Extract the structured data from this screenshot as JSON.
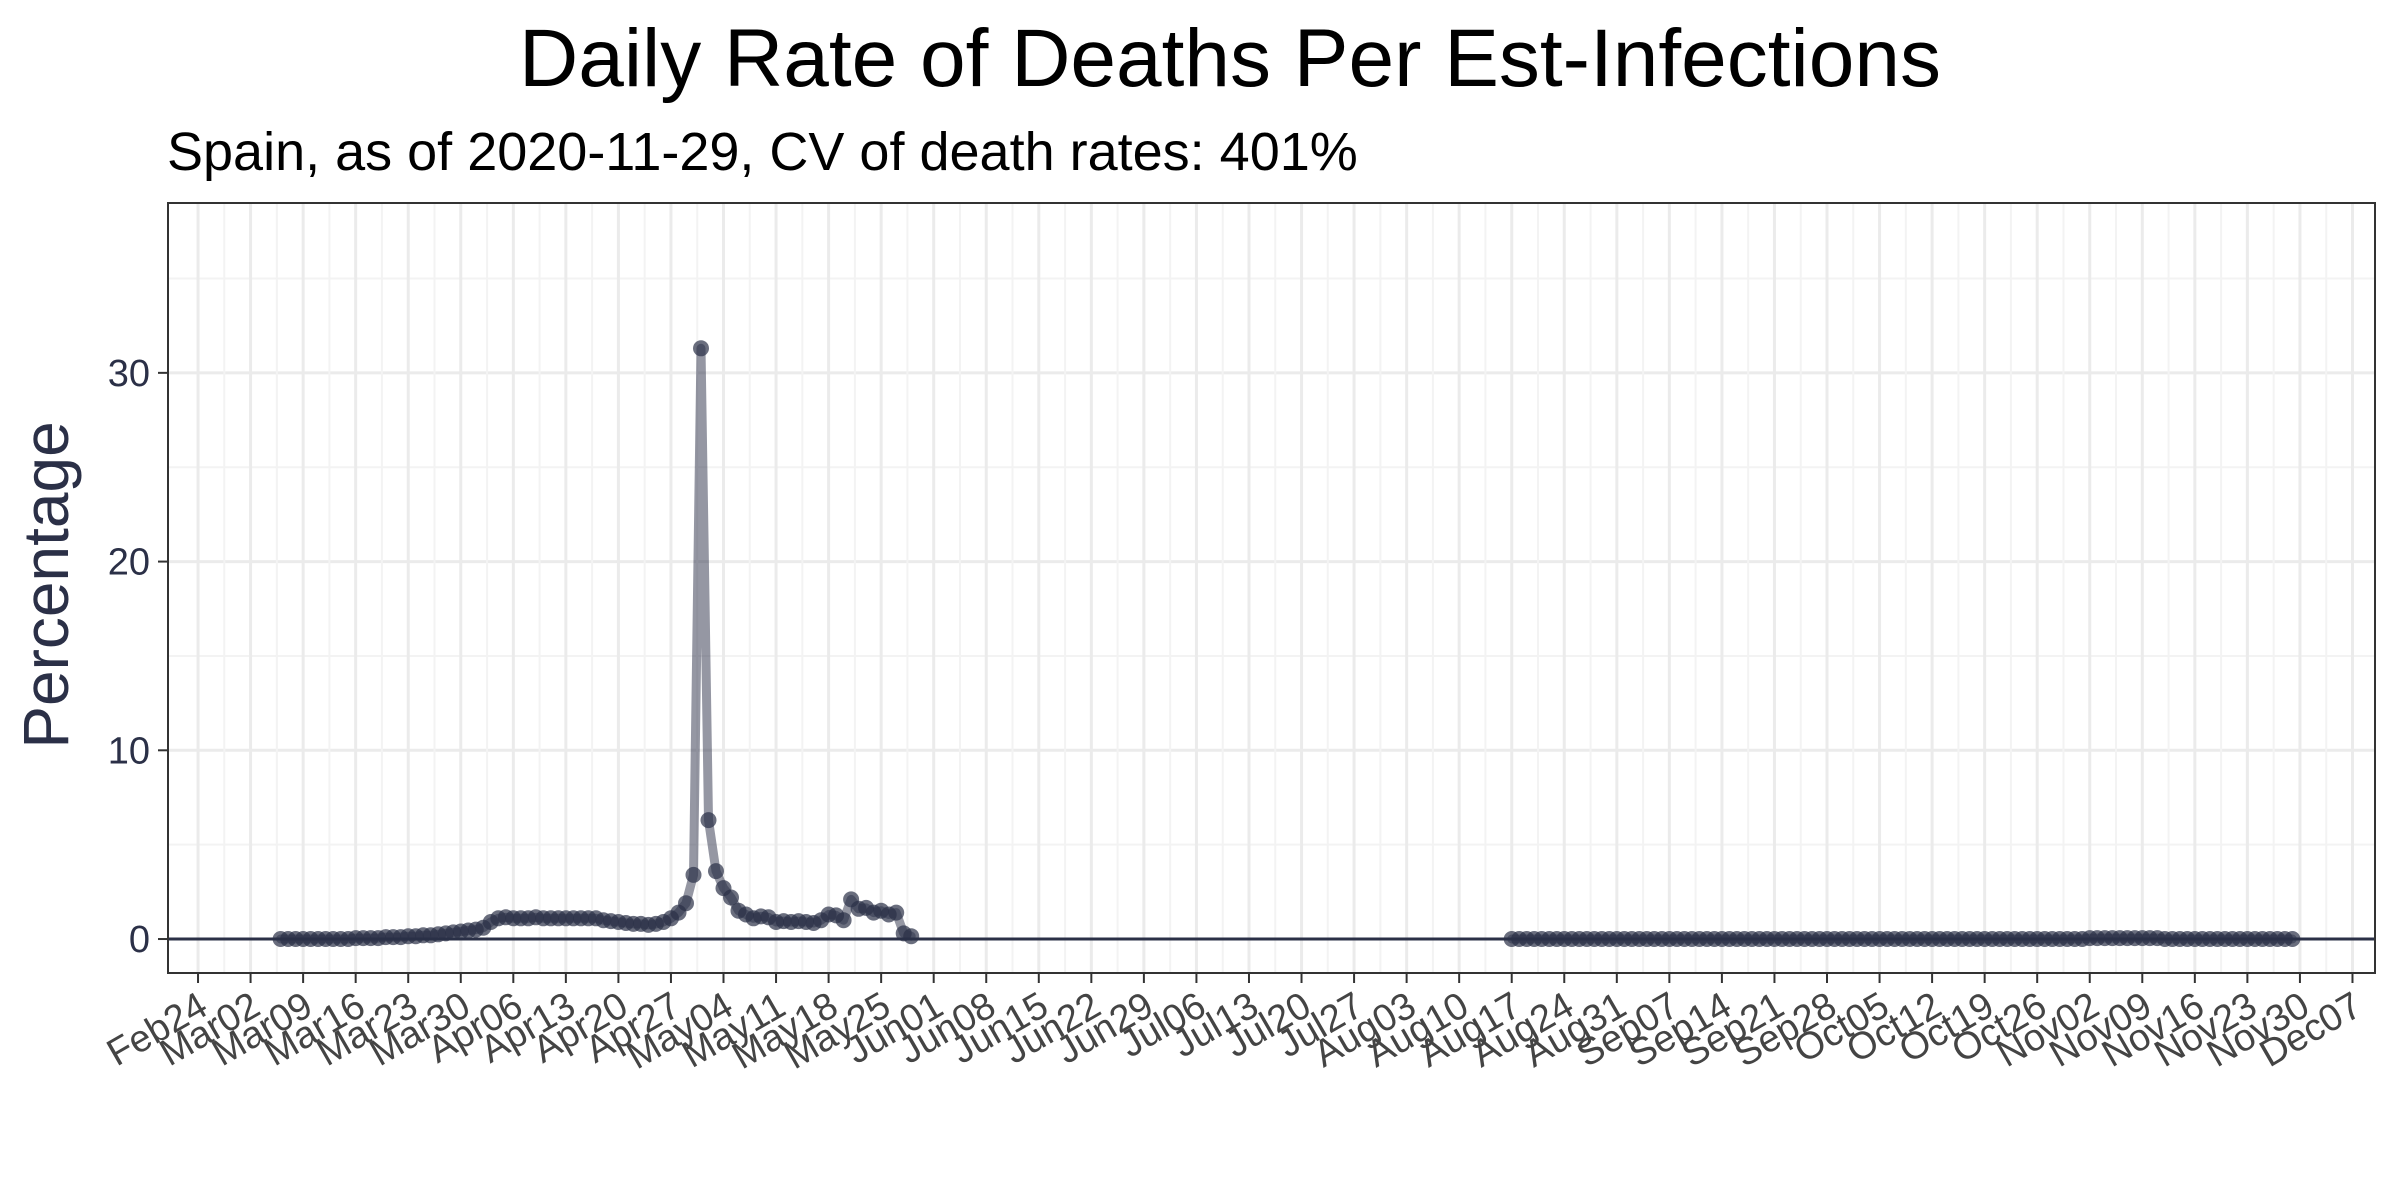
{
  "chart_data": {
    "type": "line",
    "title": "Daily Rate of Deaths Per Est-Infections",
    "subtitle": "Spain, as of 2020-11-29, CV of death rates: 401%",
    "xlabel": "",
    "ylabel": "Percentage",
    "x_axis_type": "date",
    "xlim": [
      "2020-02-20",
      "2020-12-10"
    ],
    "ylim": [
      -1.8,
      39
    ],
    "y_ticks": [
      0,
      10,
      20,
      30
    ],
    "x_ticks": [
      {
        "date": "2020-02-24",
        "label": "Feb24"
      },
      {
        "date": "2020-03-02",
        "label": "Mar02"
      },
      {
        "date": "2020-03-09",
        "label": "Mar09"
      },
      {
        "date": "2020-03-16",
        "label": "Mar16"
      },
      {
        "date": "2020-03-23",
        "label": "Mar23"
      },
      {
        "date": "2020-03-30",
        "label": "Mar30"
      },
      {
        "date": "2020-04-06",
        "label": "Apr06"
      },
      {
        "date": "2020-04-13",
        "label": "Apr13"
      },
      {
        "date": "2020-04-20",
        "label": "Apr20"
      },
      {
        "date": "2020-04-27",
        "label": "Apr27"
      },
      {
        "date": "2020-05-04",
        "label": "May04"
      },
      {
        "date": "2020-05-11",
        "label": "May11"
      },
      {
        "date": "2020-05-18",
        "label": "May18"
      },
      {
        "date": "2020-05-25",
        "label": "May25"
      },
      {
        "date": "2020-06-01",
        "label": "Jun01"
      },
      {
        "date": "2020-06-08",
        "label": "Jun08"
      },
      {
        "date": "2020-06-15",
        "label": "Jun15"
      },
      {
        "date": "2020-06-22",
        "label": "Jun22"
      },
      {
        "date": "2020-06-29",
        "label": "Jun29"
      },
      {
        "date": "2020-07-06",
        "label": "Jul06"
      },
      {
        "date": "2020-07-13",
        "label": "Jul13"
      },
      {
        "date": "2020-07-20",
        "label": "Jul20"
      },
      {
        "date": "2020-07-27",
        "label": "Jul27"
      },
      {
        "date": "2020-08-03",
        "label": "Aug03"
      },
      {
        "date": "2020-08-10",
        "label": "Aug10"
      },
      {
        "date": "2020-08-17",
        "label": "Aug17"
      },
      {
        "date": "2020-08-24",
        "label": "Aug24"
      },
      {
        "date": "2020-08-31",
        "label": "Aug31"
      },
      {
        "date": "2020-09-07",
        "label": "Sep07"
      },
      {
        "date": "2020-09-14",
        "label": "Sep14"
      },
      {
        "date": "2020-09-21",
        "label": "Sep21"
      },
      {
        "date": "2020-09-28",
        "label": "Sep28"
      },
      {
        "date": "2020-10-05",
        "label": "Oct05"
      },
      {
        "date": "2020-10-12",
        "label": "Oct12"
      },
      {
        "date": "2020-10-19",
        "label": "Oct19"
      },
      {
        "date": "2020-10-26",
        "label": "Oct26"
      },
      {
        "date": "2020-11-02",
        "label": "Nov02"
      },
      {
        "date": "2020-11-09",
        "label": "Nov09"
      },
      {
        "date": "2020-11-16",
        "label": "Nov16"
      },
      {
        "date": "2020-11-23",
        "label": "Nov23"
      },
      {
        "date": "2020-11-30",
        "label": "Nov30"
      },
      {
        "date": "2020-12-07",
        "label": "Dec07"
      }
    ],
    "grid": true,
    "reference_line_y": 0,
    "series_color": "#2b3047",
    "series": [
      {
        "segments": [
          [
            {
              "x": "2020-03-06",
              "y": 0.0
            },
            {
              "x": "2020-03-07",
              "y": 0.0
            },
            {
              "x": "2020-03-08",
              "y": 0.0
            },
            {
              "x": "2020-03-09",
              "y": 0.0
            },
            {
              "x": "2020-03-10",
              "y": 0.0
            },
            {
              "x": "2020-03-11",
              "y": 0.0
            },
            {
              "x": "2020-03-12",
              "y": 0.0
            },
            {
              "x": "2020-03-13",
              "y": 0.0
            },
            {
              "x": "2020-03-14",
              "y": 0.0
            },
            {
              "x": "2020-03-15",
              "y": 0.0
            },
            {
              "x": "2020-03-16",
              "y": 0.05
            },
            {
              "x": "2020-03-17",
              "y": 0.05
            },
            {
              "x": "2020-03-18",
              "y": 0.05
            },
            {
              "x": "2020-03-19",
              "y": 0.05
            },
            {
              "x": "2020-03-20",
              "y": 0.1
            },
            {
              "x": "2020-03-21",
              "y": 0.1
            },
            {
              "x": "2020-03-22",
              "y": 0.1
            },
            {
              "x": "2020-03-23",
              "y": 0.15
            },
            {
              "x": "2020-03-24",
              "y": 0.15
            },
            {
              "x": "2020-03-25",
              "y": 0.2
            },
            {
              "x": "2020-03-26",
              "y": 0.2
            },
            {
              "x": "2020-03-27",
              "y": 0.25
            },
            {
              "x": "2020-03-28",
              "y": 0.3
            },
            {
              "x": "2020-03-29",
              "y": 0.35
            },
            {
              "x": "2020-03-30",
              "y": 0.4
            },
            {
              "x": "2020-03-31",
              "y": 0.45
            },
            {
              "x": "2020-04-01",
              "y": 0.5
            },
            {
              "x": "2020-04-02",
              "y": 0.6
            },
            {
              "x": "2020-04-03",
              "y": 0.9
            },
            {
              "x": "2020-04-04",
              "y": 1.1
            },
            {
              "x": "2020-04-05",
              "y": 1.15
            },
            {
              "x": "2020-04-06",
              "y": 1.1
            },
            {
              "x": "2020-04-07",
              "y": 1.1
            },
            {
              "x": "2020-04-08",
              "y": 1.1
            },
            {
              "x": "2020-04-09",
              "y": 1.15
            },
            {
              "x": "2020-04-10",
              "y": 1.1
            },
            {
              "x": "2020-04-11",
              "y": 1.1
            },
            {
              "x": "2020-04-12",
              "y": 1.1
            },
            {
              "x": "2020-04-13",
              "y": 1.1
            },
            {
              "x": "2020-04-14",
              "y": 1.1
            },
            {
              "x": "2020-04-15",
              "y": 1.1
            },
            {
              "x": "2020-04-16",
              "y": 1.1
            },
            {
              "x": "2020-04-17",
              "y": 1.1
            },
            {
              "x": "2020-04-18",
              "y": 1.0
            },
            {
              "x": "2020-04-19",
              "y": 0.95
            },
            {
              "x": "2020-04-20",
              "y": 0.9
            },
            {
              "x": "2020-04-21",
              "y": 0.85
            },
            {
              "x": "2020-04-22",
              "y": 0.8
            },
            {
              "x": "2020-04-23",
              "y": 0.8
            },
            {
              "x": "2020-04-24",
              "y": 0.75
            },
            {
              "x": "2020-04-25",
              "y": 0.8
            },
            {
              "x": "2020-04-26",
              "y": 0.9
            },
            {
              "x": "2020-04-27",
              "y": 1.1
            },
            {
              "x": "2020-04-28",
              "y": 1.4
            },
            {
              "x": "2020-04-29",
              "y": 1.9
            },
            {
              "x": "2020-04-30",
              "y": 3.4
            },
            {
              "x": "2020-05-01",
              "y": 31.3
            },
            {
              "x": "2020-05-02",
              "y": 6.3
            },
            {
              "x": "2020-05-03",
              "y": 3.6
            },
            {
              "x": "2020-05-04",
              "y": 2.7
            },
            {
              "x": "2020-05-05",
              "y": 2.2
            },
            {
              "x": "2020-05-06",
              "y": 1.5
            },
            {
              "x": "2020-05-07",
              "y": 1.3
            },
            {
              "x": "2020-05-08",
              "y": 1.1
            },
            {
              "x": "2020-05-09",
              "y": 1.2
            },
            {
              "x": "2020-05-10",
              "y": 1.15
            },
            {
              "x": "2020-05-11",
              "y": 0.9
            },
            {
              "x": "2020-05-12",
              "y": 0.95
            },
            {
              "x": "2020-05-13",
              "y": 0.9
            },
            {
              "x": "2020-05-14",
              "y": 0.95
            },
            {
              "x": "2020-05-15",
              "y": 0.9
            },
            {
              "x": "2020-05-16",
              "y": 0.85
            },
            {
              "x": "2020-05-17",
              "y": 1.0
            },
            {
              "x": "2020-05-18",
              "y": 1.3
            },
            {
              "x": "2020-05-19",
              "y": 1.25
            },
            {
              "x": "2020-05-20",
              "y": 1.0
            },
            {
              "x": "2020-05-21",
              "y": 2.1
            },
            {
              "x": "2020-05-22",
              "y": 1.6
            },
            {
              "x": "2020-05-23",
              "y": 1.65
            },
            {
              "x": "2020-05-24",
              "y": 1.4
            },
            {
              "x": "2020-05-25",
              "y": 1.5
            },
            {
              "x": "2020-05-26",
              "y": 1.3
            },
            {
              "x": "2020-05-27",
              "y": 1.4
            },
            {
              "x": "2020-05-28",
              "y": 0.3
            },
            {
              "x": "2020-05-29",
              "y": 0.15
            }
          ],
          [
            {
              "x": "2020-08-17",
              "y": 0.0
            },
            {
              "x": "2020-08-18",
              "y": 0.0
            },
            {
              "x": "2020-08-19",
              "y": 0.0
            },
            {
              "x": "2020-08-20",
              "y": 0.0
            },
            {
              "x": "2020-08-21",
              "y": 0.0
            },
            {
              "x": "2020-08-22",
              "y": 0.0
            },
            {
              "x": "2020-08-23",
              "y": 0.0
            },
            {
              "x": "2020-08-24",
              "y": 0.0
            },
            {
              "x": "2020-08-25",
              "y": 0.0
            },
            {
              "x": "2020-08-26",
              "y": 0.0
            },
            {
              "x": "2020-08-27",
              "y": 0.0
            },
            {
              "x": "2020-08-28",
              "y": 0.0
            },
            {
              "x": "2020-08-29",
              "y": 0.0
            },
            {
              "x": "2020-08-30",
              "y": 0.0
            },
            {
              "x": "2020-08-31",
              "y": 0.0
            },
            {
              "x": "2020-09-01",
              "y": 0.0
            },
            {
              "x": "2020-09-02",
              "y": 0.0
            },
            {
              "x": "2020-09-03",
              "y": 0.0
            },
            {
              "x": "2020-09-04",
              "y": 0.0
            },
            {
              "x": "2020-09-05",
              "y": 0.0
            },
            {
              "x": "2020-09-06",
              "y": 0.0
            },
            {
              "x": "2020-09-07",
              "y": 0.0
            },
            {
              "x": "2020-09-08",
              "y": 0.0
            },
            {
              "x": "2020-09-09",
              "y": 0.0
            },
            {
              "x": "2020-09-10",
              "y": 0.0
            },
            {
              "x": "2020-09-11",
              "y": 0.0
            },
            {
              "x": "2020-09-12",
              "y": 0.0
            },
            {
              "x": "2020-09-13",
              "y": 0.0
            },
            {
              "x": "2020-09-14",
              "y": 0.0
            },
            {
              "x": "2020-09-15",
              "y": 0.0
            },
            {
              "x": "2020-09-16",
              "y": 0.0
            },
            {
              "x": "2020-09-17",
              "y": 0.0
            },
            {
              "x": "2020-09-18",
              "y": 0.0
            },
            {
              "x": "2020-09-19",
              "y": 0.0
            },
            {
              "x": "2020-09-20",
              "y": 0.0
            },
            {
              "x": "2020-09-21",
              "y": 0.0
            },
            {
              "x": "2020-09-22",
              "y": 0.0
            },
            {
              "x": "2020-09-23",
              "y": 0.0
            },
            {
              "x": "2020-09-24",
              "y": 0.0
            },
            {
              "x": "2020-09-25",
              "y": 0.0
            },
            {
              "x": "2020-09-26",
              "y": 0.0
            },
            {
              "x": "2020-09-27",
              "y": 0.0
            },
            {
              "x": "2020-09-28",
              "y": 0.0
            },
            {
              "x": "2020-09-29",
              "y": 0.0
            },
            {
              "x": "2020-09-30",
              "y": 0.0
            },
            {
              "x": "2020-10-01",
              "y": 0.0
            },
            {
              "x": "2020-10-02",
              "y": 0.0
            },
            {
              "x": "2020-10-03",
              "y": 0.0
            },
            {
              "x": "2020-10-04",
              "y": 0.0
            },
            {
              "x": "2020-10-05",
              "y": 0.0
            },
            {
              "x": "2020-10-06",
              "y": 0.0
            },
            {
              "x": "2020-10-07",
              "y": 0.0
            },
            {
              "x": "2020-10-08",
              "y": 0.0
            },
            {
              "x": "2020-10-09",
              "y": 0.0
            },
            {
              "x": "2020-10-10",
              "y": 0.0
            },
            {
              "x": "2020-10-11",
              "y": 0.0
            },
            {
              "x": "2020-10-12",
              "y": 0.0
            },
            {
              "x": "2020-10-13",
              "y": 0.0
            },
            {
              "x": "2020-10-14",
              "y": 0.0
            },
            {
              "x": "2020-10-15",
              "y": 0.0
            },
            {
              "x": "2020-10-16",
              "y": 0.0
            },
            {
              "x": "2020-10-17",
              "y": 0.0
            },
            {
              "x": "2020-10-18",
              "y": 0.0
            },
            {
              "x": "2020-10-19",
              "y": 0.0
            },
            {
              "x": "2020-10-20",
              "y": 0.0
            },
            {
              "x": "2020-10-21",
              "y": 0.0
            },
            {
              "x": "2020-10-22",
              "y": 0.0
            },
            {
              "x": "2020-10-23",
              "y": 0.0
            },
            {
              "x": "2020-10-24",
              "y": 0.0
            },
            {
              "x": "2020-10-25",
              "y": 0.0
            },
            {
              "x": "2020-10-26",
              "y": 0.0
            },
            {
              "x": "2020-10-27",
              "y": 0.0
            },
            {
              "x": "2020-10-28",
              "y": 0.0
            },
            {
              "x": "2020-10-29",
              "y": 0.0
            },
            {
              "x": "2020-10-30",
              "y": 0.0
            },
            {
              "x": "2020-10-31",
              "y": 0.0
            },
            {
              "x": "2020-11-01",
              "y": 0.0
            },
            {
              "x": "2020-11-02",
              "y": 0.05
            },
            {
              "x": "2020-11-03",
              "y": 0.05
            },
            {
              "x": "2020-11-04",
              "y": 0.05
            },
            {
              "x": "2020-11-05",
              "y": 0.05
            },
            {
              "x": "2020-11-06",
              "y": 0.05
            },
            {
              "x": "2020-11-07",
              "y": 0.05
            },
            {
              "x": "2020-11-08",
              "y": 0.05
            },
            {
              "x": "2020-11-09",
              "y": 0.05
            },
            {
              "x": "2020-11-10",
              "y": 0.05
            },
            {
              "x": "2020-11-11",
              "y": 0.05
            },
            {
              "x": "2020-11-12",
              "y": 0.0
            },
            {
              "x": "2020-11-13",
              "y": 0.0
            },
            {
              "x": "2020-11-14",
              "y": 0.0
            },
            {
              "x": "2020-11-15",
              "y": 0.0
            },
            {
              "x": "2020-11-16",
              "y": 0.0
            },
            {
              "x": "2020-11-17",
              "y": 0.0
            },
            {
              "x": "2020-11-18",
              "y": 0.0
            },
            {
              "x": "2020-11-19",
              "y": 0.0
            },
            {
              "x": "2020-11-20",
              "y": 0.0
            },
            {
              "x": "2020-11-21",
              "y": 0.0
            },
            {
              "x": "2020-11-22",
              "y": 0.0
            },
            {
              "x": "2020-11-23",
              "y": 0.0
            },
            {
              "x": "2020-11-24",
              "y": 0.0
            },
            {
              "x": "2020-11-25",
              "y": 0.0
            },
            {
              "x": "2020-11-26",
              "y": 0.0
            },
            {
              "x": "2020-11-27",
              "y": 0.0
            },
            {
              "x": "2020-11-28",
              "y": 0.0
            },
            {
              "x": "2020-11-29",
              "y": 0.0
            }
          ]
        ]
      }
    ]
  }
}
